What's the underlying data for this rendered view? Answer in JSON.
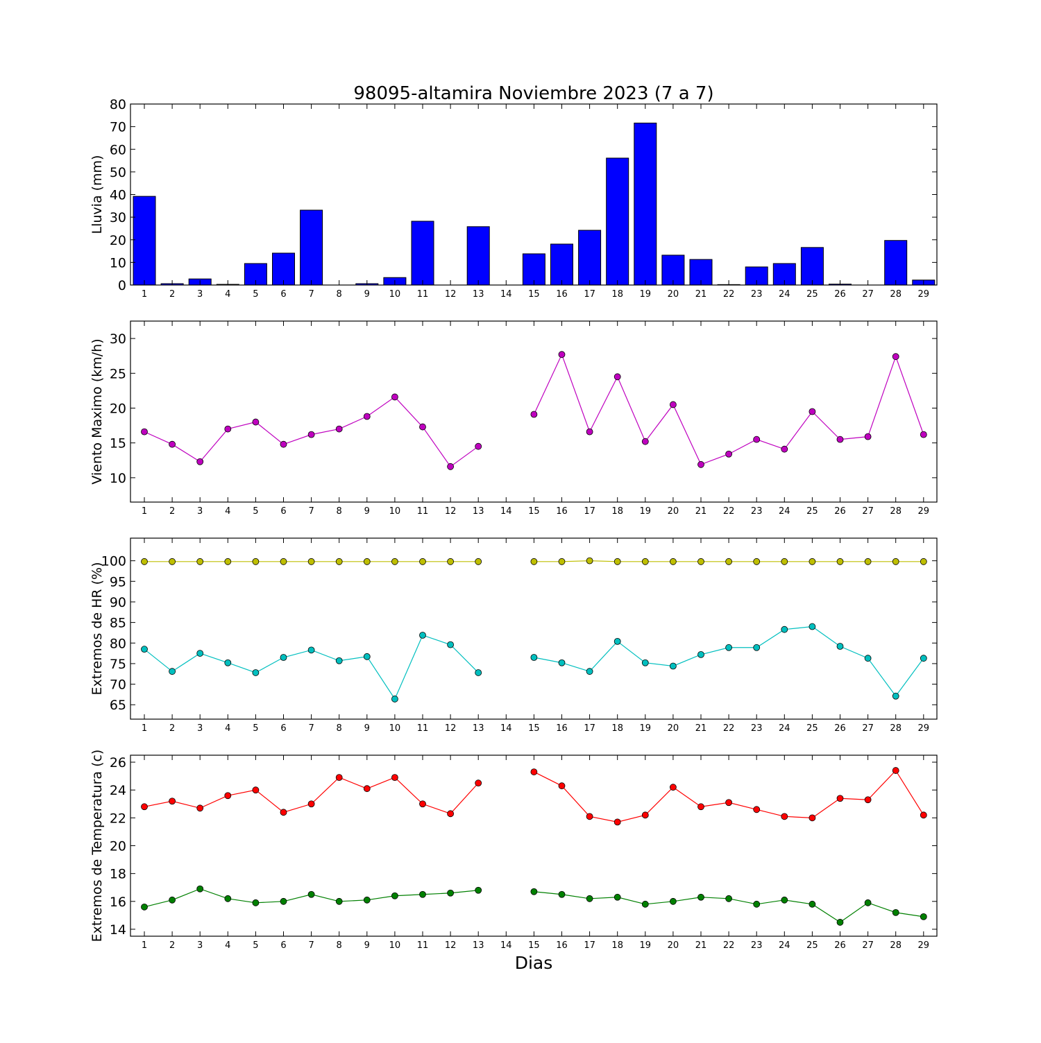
{
  "title": "98095-altamira Noviembre 2023  (7 a 7)",
  "xlabel": "Dias",
  "chart_data": [
    {
      "type": "bar",
      "ylabel": "Lluvia (mm)",
      "ylim": [
        0,
        80
      ],
      "yticks": [
        0,
        10,
        20,
        30,
        40,
        50,
        60,
        70,
        80
      ],
      "categories": [
        1,
        2,
        3,
        4,
        5,
        6,
        7,
        8,
        9,
        10,
        11,
        12,
        13,
        14,
        15,
        16,
        17,
        18,
        19,
        20,
        21,
        22,
        23,
        24,
        25,
        26,
        27,
        28,
        29
      ],
      "color": "#0000ff",
      "series": [
        {
          "values": [
            39.2,
            0.6,
            2.7,
            0.3,
            9.5,
            14.1,
            33.1,
            0,
            0.6,
            3.3,
            28.2,
            0,
            25.8,
            0,
            13.8,
            18.1,
            24.2,
            56.1,
            71.6,
            13.2,
            11.3,
            0.2,
            8.0,
            9.5,
            16.6,
            0.4,
            0,
            19.7,
            2.2
          ]
        }
      ]
    },
    {
      "type": "line",
      "ylabel": "Viento Maximo (km/h)",
      "ylim": [
        6.5,
        32.5
      ],
      "yticks": [
        10,
        15,
        20,
        25,
        30
      ],
      "x": [
        1,
        2,
        3,
        4,
        5,
        6,
        7,
        8,
        9,
        10,
        11,
        12,
        13,
        14,
        15,
        16,
        17,
        18,
        19,
        20,
        21,
        22,
        23,
        24,
        25,
        26,
        27,
        28,
        29
      ],
      "series": [
        {
          "color": "#bf00bf",
          "values": [
            16.6,
            14.8,
            12.3,
            17.0,
            18.0,
            14.8,
            16.2,
            17.0,
            18.8,
            21.6,
            17.3,
            11.6,
            14.5,
            null,
            19.1,
            27.7,
            16.6,
            24.5,
            15.2,
            20.5,
            11.9,
            13.4,
            15.5,
            14.1,
            19.5,
            15.5,
            15.9,
            27.4,
            16.2
          ]
        }
      ]
    },
    {
      "type": "line",
      "ylabel": "Extremos de HR (%)",
      "ylim": [
        61.5,
        105.5
      ],
      "yticks": [
        65,
        70,
        75,
        80,
        85,
        90,
        95,
        100
      ],
      "x": [
        1,
        2,
        3,
        4,
        5,
        6,
        7,
        8,
        9,
        10,
        11,
        12,
        13,
        14,
        15,
        16,
        17,
        18,
        19,
        20,
        21,
        22,
        23,
        24,
        25,
        26,
        27,
        28,
        29
      ],
      "series": [
        {
          "color": "#bfbf00",
          "values": [
            99.8,
            99.8,
            99.8,
            99.8,
            99.8,
            99.8,
            99.8,
            99.8,
            99.8,
            99.8,
            99.8,
            99.8,
            99.8,
            null,
            99.8,
            99.8,
            100.0,
            99.8,
            99.8,
            99.8,
            99.8,
            99.8,
            99.8,
            99.8,
            99.8,
            99.8,
            99.8,
            99.8,
            99.8
          ]
        },
        {
          "color": "#00bfbf",
          "values": [
            78.5,
            73.1,
            77.5,
            75.2,
            72.8,
            76.5,
            78.3,
            75.7,
            76.7,
            66.4,
            81.9,
            79.6,
            72.8,
            null,
            76.5,
            75.2,
            73.1,
            80.4,
            75.2,
            74.4,
            77.2,
            78.9,
            78.9,
            83.3,
            84.0,
            79.2,
            76.3,
            67.1,
            76.3
          ]
        }
      ]
    },
    {
      "type": "line",
      "ylabel": "Extremos de Temperatura (c)",
      "ylim": [
        13.5,
        26.5
      ],
      "yticks": [
        14,
        16,
        18,
        20,
        22,
        24,
        26
      ],
      "x": [
        1,
        2,
        3,
        4,
        5,
        6,
        7,
        8,
        9,
        10,
        11,
        12,
        13,
        14,
        15,
        16,
        17,
        18,
        19,
        20,
        21,
        22,
        23,
        24,
        25,
        26,
        27,
        28,
        29
      ],
      "series": [
        {
          "color": "#ff0000",
          "values": [
            22.8,
            23.2,
            22.7,
            23.6,
            24.0,
            22.4,
            23.0,
            24.9,
            24.1,
            24.9,
            23.0,
            22.3,
            24.5,
            null,
            25.3,
            24.3,
            22.1,
            21.7,
            22.2,
            24.2,
            22.8,
            23.1,
            22.6,
            22.1,
            22.0,
            23.4,
            23.3,
            25.4,
            22.2
          ]
        },
        {
          "color": "#008000",
          "values": [
            15.6,
            16.1,
            16.9,
            16.2,
            15.9,
            16.0,
            16.5,
            16.0,
            16.1,
            16.4,
            16.5,
            16.6,
            16.8,
            null,
            16.7,
            16.5,
            16.2,
            16.3,
            15.8,
            16.0,
            16.3,
            16.2,
            15.8,
            16.1,
            15.8,
            14.5,
            15.9,
            15.2,
            14.9
          ]
        }
      ]
    }
  ]
}
